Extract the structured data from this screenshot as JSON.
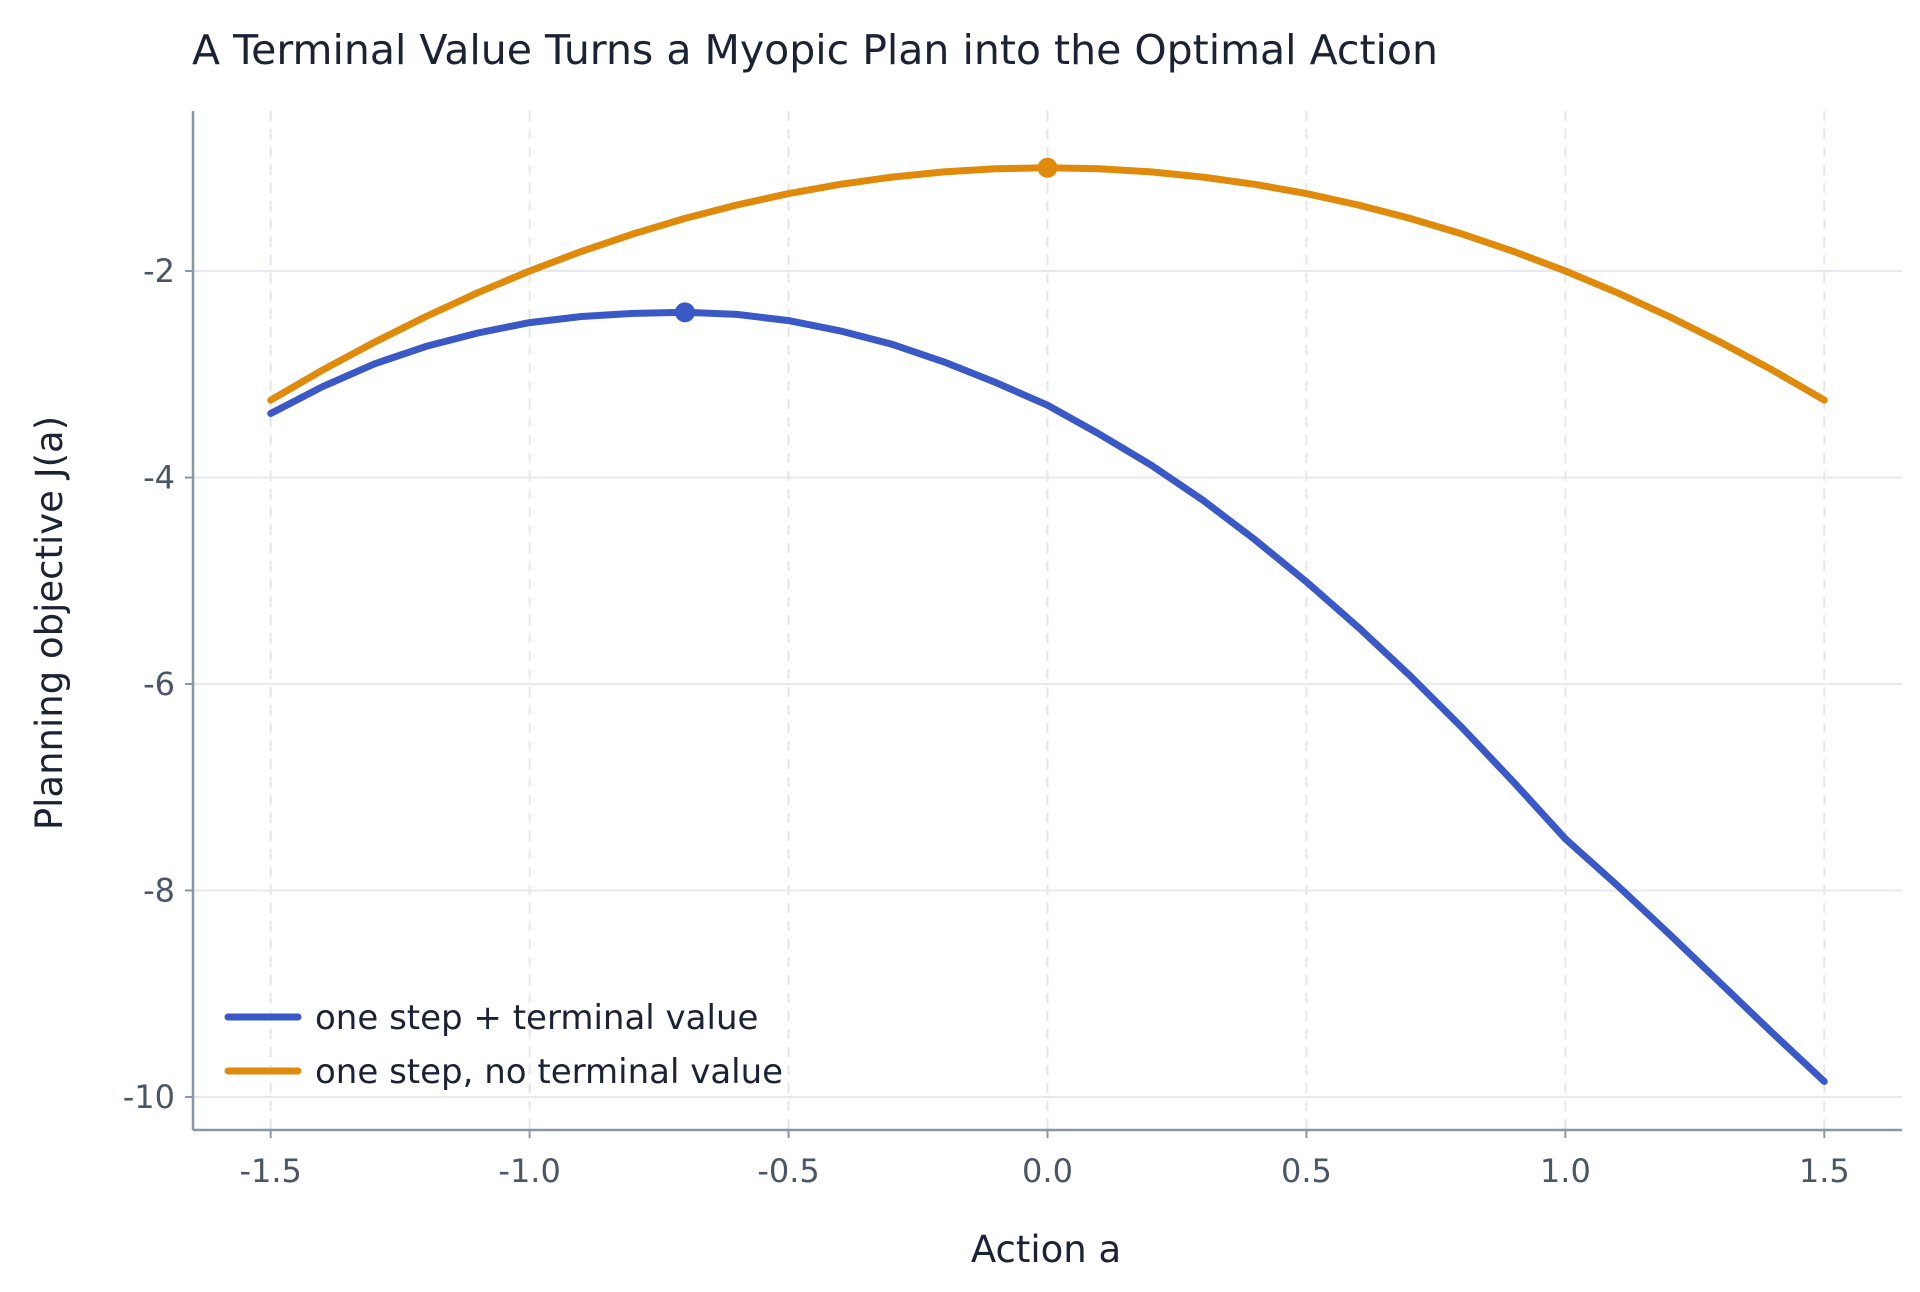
{
  "chart_data": {
    "type": "line",
    "title": "A Terminal Value Turns a Myopic Plan into the Optimal Action",
    "xlabel": "Action a",
    "ylabel": "Planning objective J(a)",
    "xlim": [
      -1.65,
      1.65
    ],
    "ylim": [
      -10.32,
      -0.45
    ],
    "xticks": [
      -1.5,
      -1.0,
      -0.5,
      0.0,
      0.5,
      1.0,
      1.5
    ],
    "xtick_labels": [
      "-1.5",
      "-1.0",
      "-0.5",
      "0.0",
      "0.5",
      "1.0",
      "1.5"
    ],
    "yticks": [
      -2,
      -4,
      -6,
      -8,
      -10
    ],
    "ytick_labels": [
      "-2",
      "-4",
      "-6",
      "-8",
      "-10"
    ],
    "grid": true,
    "legend_position": "lower-left",
    "series": [
      {
        "name": "one step + terminal value",
        "color": "#3a59c7",
        "x": [
          -1.5,
          -1.4,
          -1.3,
          -1.2,
          -1.1,
          -1.0,
          -0.9,
          -0.8,
          -0.7,
          -0.6,
          -0.5,
          -0.4,
          -0.3,
          -0.2,
          -0.1,
          0.0,
          0.1,
          0.2,
          0.3,
          0.4,
          0.5,
          0.6,
          0.7,
          0.8,
          0.9,
          1.0,
          1.1,
          1.2,
          1.3,
          1.4,
          1.5
        ],
        "y": [
          -3.38,
          -3.12,
          -2.9,
          -2.73,
          -2.6,
          -2.5,
          -2.44,
          -2.41,
          -2.4,
          -2.42,
          -2.48,
          -2.58,
          -2.71,
          -2.88,
          -3.08,
          -3.3,
          -3.58,
          -3.88,
          -4.22,
          -4.6,
          -5.01,
          -5.45,
          -5.92,
          -6.42,
          -6.95,
          -7.5,
          -7.95,
          -8.42,
          -8.9,
          -9.38,
          -9.85
        ],
        "marker": {
          "x": -0.7,
          "y": -2.4
        }
      },
      {
        "name": "one step, no terminal value",
        "color": "#e08a0b",
        "x": [
          -1.5,
          -1.4,
          -1.3,
          -1.2,
          -1.1,
          -1.0,
          -0.9,
          -0.8,
          -0.7,
          -0.6,
          -0.5,
          -0.4,
          -0.3,
          -0.2,
          -0.1,
          0.0,
          0.1,
          0.2,
          0.3,
          0.4,
          0.5,
          0.6,
          0.7,
          0.8,
          0.9,
          1.0,
          1.1,
          1.2,
          1.3,
          1.4,
          1.5
        ],
        "y": [
          -3.25,
          -2.96,
          -2.69,
          -2.44,
          -2.21,
          -2.0,
          -1.81,
          -1.64,
          -1.49,
          -1.36,
          -1.25,
          -1.16,
          -1.09,
          -1.04,
          -1.01,
          -1.0,
          -1.01,
          -1.04,
          -1.09,
          -1.16,
          -1.25,
          -1.36,
          -1.49,
          -1.64,
          -1.81,
          -2.0,
          -2.21,
          -2.44,
          -2.69,
          -2.96,
          -3.25
        ],
        "marker": {
          "x": 0.0,
          "y": -1.0
        }
      }
    ]
  }
}
